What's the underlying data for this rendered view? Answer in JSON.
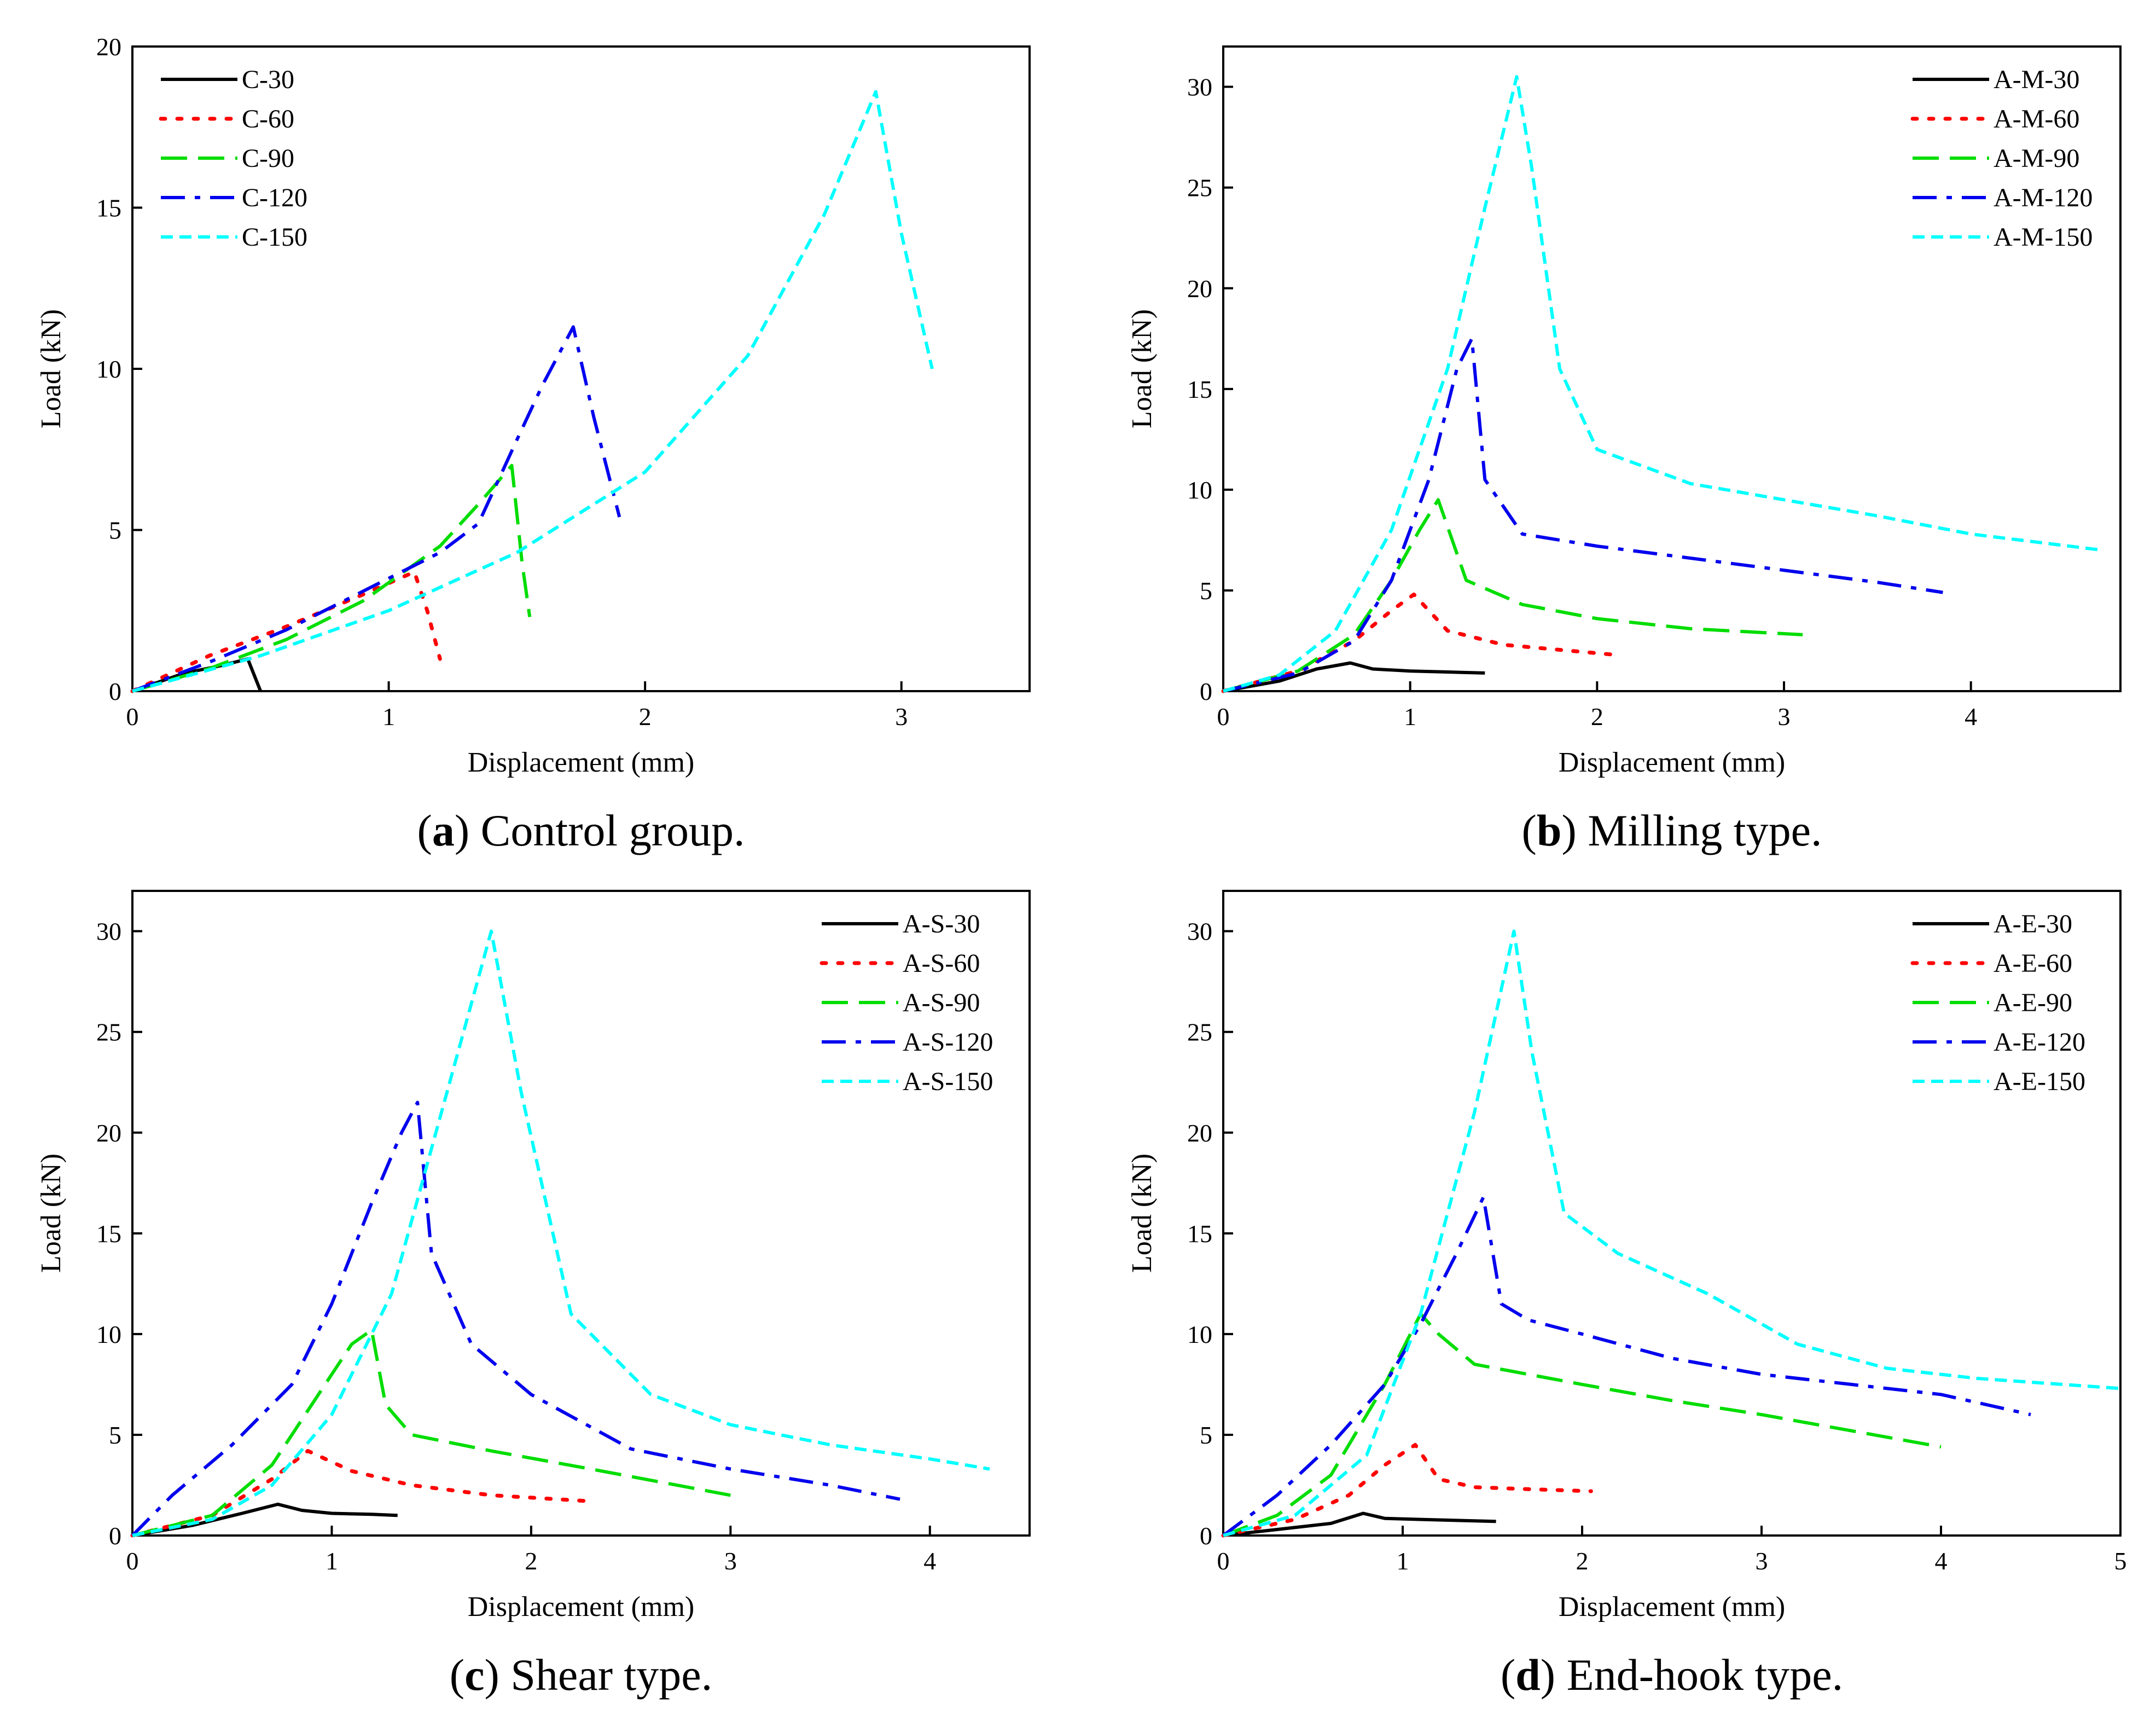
{
  "chart_data": [
    {
      "id": "a",
      "type": "line",
      "caption_letter": "a",
      "caption_text": "Control group.",
      "xlabel": "Displacement (mm)",
      "ylabel": "Load (kN)",
      "xlim": [
        0,
        3.5
      ],
      "ylim": [
        0,
        20
      ],
      "xticks": [
        0,
        1,
        2,
        3
      ],
      "yticks": [
        0,
        5,
        10,
        15,
        20
      ],
      "legend_position": "top-left",
      "series": [
        {
          "name": "C-30",
          "color": "#000000",
          "dash": "solid",
          "x": [
            0,
            0.2,
            0.35,
            0.45,
            0.5
          ],
          "y": [
            0,
            0.55,
            0.8,
            1.0,
            0
          ]
        },
        {
          "name": "C-60",
          "color": "#ff0000",
          "dash": "dot",
          "x": [
            0,
            0.3,
            0.6,
            0.9,
            1.1,
            1.15,
            1.2
          ],
          "y": [
            0,
            1.1,
            2.0,
            3.0,
            3.7,
            2.5,
            1.0
          ]
        },
        {
          "name": "C-90",
          "color": "#00dd00",
          "dash": "dash",
          "x": [
            0,
            0.3,
            0.6,
            0.9,
            1.2,
            1.35,
            1.48,
            1.52,
            1.55
          ],
          "y": [
            0,
            0.7,
            1.6,
            2.8,
            4.5,
            5.8,
            7.0,
            4.0,
            2.3
          ]
        },
        {
          "name": "C-120",
          "color": "#0000ee",
          "dash": "dashdot",
          "x": [
            0,
            0.3,
            0.6,
            0.8,
            1.0,
            1.2,
            1.35,
            1.5,
            1.6,
            1.72,
            1.8,
            1.9
          ],
          "y": [
            0,
            0.9,
            1.9,
            2.7,
            3.5,
            4.3,
            5.2,
            7.8,
            9.5,
            11.3,
            8.5,
            5.4
          ]
        },
        {
          "name": "C-150",
          "color": "#00ffff",
          "dash": "shortdash",
          "x": [
            0,
            0.5,
            1.0,
            1.5,
            2.0,
            2.4,
            2.7,
            2.9,
            3.0,
            3.12
          ],
          "y": [
            0,
            1.1,
            2.5,
            4.3,
            6.8,
            10.4,
            14.8,
            18.6,
            14.2,
            10.0
          ]
        }
      ]
    },
    {
      "id": "b",
      "type": "line",
      "caption_letter": "b",
      "caption_text": "Milling type.",
      "xlabel": "Displacement (mm)",
      "ylabel": "Load (kN)",
      "xlim": [
        0,
        4.8
      ],
      "ylim": [
        0,
        32
      ],
      "xticks": [
        0,
        1,
        2,
        3,
        4
      ],
      "yticks": [
        0,
        5,
        10,
        15,
        20,
        25,
        30
      ],
      "legend_position": "top-right",
      "series": [
        {
          "name": "A-M-30",
          "color": "#000000",
          "dash": "solid",
          "x": [
            0,
            0.3,
            0.5,
            0.68,
            0.8,
            1.0,
            1.2,
            1.4
          ],
          "y": [
            0,
            0.5,
            1.1,
            1.4,
            1.1,
            1.0,
            0.95,
            0.9
          ]
        },
        {
          "name": "A-M-60",
          "color": "#ff0000",
          "dash": "dot",
          "x": [
            0,
            0.4,
            0.7,
            0.9,
            1.02,
            1.2,
            1.5,
            2.1
          ],
          "y": [
            0,
            1.0,
            2.5,
            4.0,
            4.8,
            3.0,
            2.3,
            1.8
          ]
        },
        {
          "name": "A-M-90",
          "color": "#00dd00",
          "dash": "dash",
          "x": [
            0,
            0.4,
            0.7,
            0.9,
            1.05,
            1.15,
            1.3,
            1.6,
            2.0,
            2.5,
            3.1
          ],
          "y": [
            0,
            1.0,
            2.8,
            5.5,
            8.0,
            9.5,
            5.5,
            4.3,
            3.6,
            3.1,
            2.8
          ]
        },
        {
          "name": "A-M-120",
          "color": "#0000ee",
          "dash": "dashdot",
          "x": [
            0,
            0.4,
            0.7,
            0.9,
            1.1,
            1.25,
            1.33,
            1.4,
            1.6,
            2.0,
            2.5,
            3.0,
            3.5,
            3.85
          ],
          "y": [
            0,
            0.9,
            2.5,
            5.5,
            10.5,
            16.0,
            17.5,
            10.5,
            7.8,
            7.2,
            6.6,
            6.0,
            5.4,
            4.9
          ]
        },
        {
          "name": "A-M-150",
          "color": "#00ffff",
          "dash": "shortdash",
          "x": [
            0,
            0.3,
            0.6,
            0.9,
            1.2,
            1.4,
            1.57,
            1.65,
            1.8,
            2.0,
            2.5,
            3.0,
            3.5,
            4.0,
            4.7
          ],
          "y": [
            0,
            0.8,
            3.0,
            8.0,
            16.0,
            24.0,
            30.5,
            26.0,
            16.0,
            12.0,
            10.3,
            9.5,
            8.7,
            7.8,
            7.0
          ]
        }
      ]
    },
    {
      "id": "c",
      "type": "line",
      "caption_letter": "c",
      "caption_text": "Shear type.",
      "xlabel": "Displacement (mm)",
      "ylabel": "Load (kN)",
      "xlim": [
        0,
        4.5
      ],
      "ylim": [
        0,
        32
      ],
      "xticks": [
        0,
        1,
        2,
        3,
        4
      ],
      "yticks": [
        0,
        5,
        10,
        15,
        20,
        25,
        30
      ],
      "legend_position": "top-right",
      "series": [
        {
          "name": "A-S-30",
          "color": "#000000",
          "dash": "solid",
          "x": [
            0,
            0.3,
            0.55,
            0.73,
            0.85,
            1.0,
            1.2,
            1.33
          ],
          "y": [
            0,
            0.5,
            1.1,
            1.55,
            1.25,
            1.1,
            1.05,
            1.0
          ]
        },
        {
          "name": "A-S-60",
          "color": "#ff0000",
          "dash": "dot",
          "x": [
            0,
            0.4,
            0.7,
            0.88,
            1.1,
            1.4,
            1.8,
            2.3
          ],
          "y": [
            0,
            1.0,
            2.8,
            4.2,
            3.2,
            2.5,
            2.0,
            1.7
          ]
        },
        {
          "name": "A-S-90",
          "color": "#00dd00",
          "dash": "dash",
          "x": [
            0,
            0.4,
            0.7,
            0.9,
            1.1,
            1.2,
            1.27,
            1.4,
            1.8,
            2.3,
            3.0
          ],
          "y": [
            0,
            1.0,
            3.5,
            6.5,
            9.5,
            10.2,
            6.5,
            5.0,
            4.2,
            3.3,
            2.0
          ]
        },
        {
          "name": "A-S-120",
          "color": "#0000ee",
          "dash": "dashdot",
          "x": [
            0,
            0.2,
            0.5,
            0.8,
            1.0,
            1.2,
            1.35,
            1.43,
            1.5,
            1.7,
            2.0,
            2.5,
            3.0,
            3.5,
            3.85
          ],
          "y": [
            0,
            2.0,
            4.5,
            7.5,
            11.5,
            16.5,
            20.0,
            21.5,
            14.0,
            9.5,
            7.0,
            4.3,
            3.3,
            2.5,
            1.8
          ]
        },
        {
          "name": "A-S-150",
          "color": "#00ffff",
          "dash": "shortdash",
          "x": [
            0,
            0.4,
            0.7,
            1.0,
            1.3,
            1.55,
            1.8,
            1.95,
            2.2,
            2.6,
            3.0,
            3.5,
            4.0,
            4.3
          ],
          "y": [
            0,
            0.8,
            2.5,
            6.0,
            12.0,
            21.0,
            30.0,
            22.0,
            11.0,
            7.0,
            5.5,
            4.5,
            3.8,
            3.3
          ]
        }
      ]
    },
    {
      "id": "d",
      "type": "line",
      "caption_letter": "d",
      "caption_text": "End-hook type.",
      "xlabel": "Displacement (mm)",
      "ylabel": "Load (kN)",
      "xlim": [
        0,
        5
      ],
      "ylim": [
        0,
        32
      ],
      "xticks": [
        0,
        1,
        2,
        3,
        4,
        5
      ],
      "yticks": [
        0,
        5,
        10,
        15,
        20,
        25,
        30
      ],
      "legend_position": "top-right",
      "series": [
        {
          "name": "A-E-30",
          "color": "#000000",
          "dash": "solid",
          "x": [
            0,
            0.3,
            0.6,
            0.78,
            0.9,
            1.1,
            1.3,
            1.52
          ],
          "y": [
            0,
            0.3,
            0.6,
            1.1,
            0.85,
            0.8,
            0.75,
            0.7
          ]
        },
        {
          "name": "A-E-60",
          "color": "#ff0000",
          "dash": "dot",
          "x": [
            0,
            0.4,
            0.7,
            0.9,
            1.07,
            1.2,
            1.4,
            1.7,
            2.05
          ],
          "y": [
            0,
            0.8,
            2.0,
            3.5,
            4.5,
            2.8,
            2.4,
            2.3,
            2.2
          ]
        },
        {
          "name": "A-E-90",
          "color": "#00dd00",
          "dash": "dash",
          "x": [
            0,
            0.3,
            0.6,
            0.9,
            1.1,
            1.2,
            1.4,
            2.0,
            2.5,
            3.0,
            3.5,
            4.0
          ],
          "y": [
            0,
            1.0,
            3.0,
            7.5,
            11.0,
            10.0,
            8.5,
            7.5,
            6.7,
            6.0,
            5.2,
            4.4
          ]
        },
        {
          "name": "A-E-120",
          "color": "#0000ee",
          "dash": "dashdot",
          "x": [
            0,
            0.3,
            0.6,
            0.9,
            1.1,
            1.3,
            1.45,
            1.55,
            1.7,
            2.0,
            2.5,
            3.0,
            3.5,
            4.0,
            4.5
          ],
          "y": [
            0,
            2.0,
            4.5,
            7.5,
            10.5,
            14.0,
            16.8,
            11.5,
            10.7,
            10.0,
            8.8,
            8.0,
            7.5,
            7.0,
            6.0
          ]
        },
        {
          "name": "A-E-150",
          "color": "#00ffff",
          "dash": "shortdash",
          "x": [
            0,
            0.4,
            0.8,
            1.1,
            1.4,
            1.62,
            1.72,
            1.9,
            2.2,
            2.7,
            3.2,
            3.7,
            4.2,
            5.0
          ],
          "y": [
            0,
            1.0,
            4.0,
            11.0,
            21.0,
            30.0,
            24.0,
            16.0,
            14.0,
            12.0,
            9.5,
            8.3,
            7.8,
            7.3
          ]
        }
      ]
    }
  ]
}
